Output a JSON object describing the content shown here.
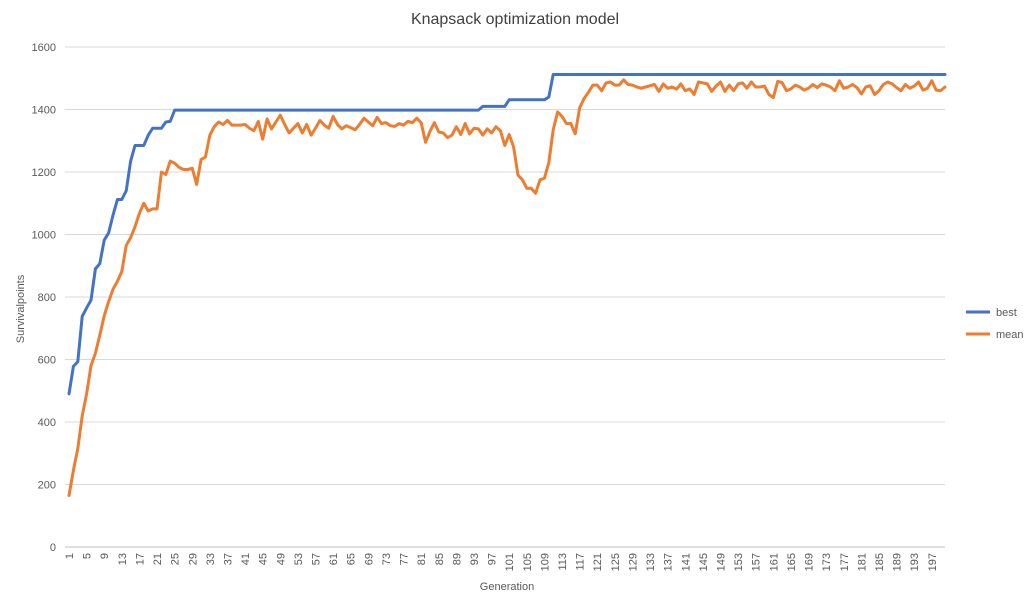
{
  "chart_data": {
    "type": "line",
    "title": "Knapsack optimization model",
    "xlabel": "Generation",
    "ylabel": "Survivalpoints",
    "ylim": [
      0,
      1600
    ],
    "yticks": [
      0,
      200,
      400,
      600,
      800,
      1000,
      1200,
      1400,
      1600
    ],
    "grid": true,
    "legend_position": "right",
    "x_start": 1,
    "x_end": 200,
    "x_tick_labels": [
      "1",
      "5",
      "9",
      "13",
      "17",
      "21",
      "25",
      "29",
      "33",
      "37",
      "41",
      "45",
      "49",
      "53",
      "57",
      "61",
      "65",
      "69",
      "73",
      "77",
      "81",
      "85",
      "89",
      "93",
      "97",
      "101",
      "105",
      "109",
      "113",
      "117",
      "121",
      "125",
      "129",
      "133",
      "137",
      "141",
      "145",
      "149",
      "153",
      "157",
      "161",
      "165",
      "169",
      "173",
      "177",
      "181",
      "185",
      "189",
      "193",
      "197"
    ],
    "series": [
      {
        "name": "best",
        "color": "#4472c4",
        "points": [
          [
            1,
            490
          ],
          [
            2,
            578
          ],
          [
            3,
            593
          ],
          [
            4,
            738
          ],
          [
            5,
            765
          ],
          [
            6,
            790
          ],
          [
            7,
            890
          ],
          [
            8,
            907
          ],
          [
            9,
            982
          ],
          [
            10,
            1005
          ],
          [
            11,
            1062
          ],
          [
            12,
            1112
          ],
          [
            13,
            1112
          ],
          [
            14,
            1140
          ],
          [
            15,
            1235
          ],
          [
            16,
            1285
          ],
          [
            17,
            1285
          ],
          [
            18,
            1285
          ],
          [
            19,
            1318
          ],
          [
            20,
            1340
          ],
          [
            21,
            1340
          ],
          [
            22,
            1340
          ],
          [
            23,
            1360
          ],
          [
            24,
            1362
          ],
          [
            25,
            1398
          ],
          [
            94,
            1398
          ],
          [
            95,
            1410
          ],
          [
            100,
            1410
          ],
          [
            101,
            1431
          ],
          [
            109,
            1431
          ],
          [
            110,
            1440
          ],
          [
            111,
            1512
          ],
          [
            200,
            1512
          ]
        ]
      },
      {
        "name": "mean",
        "color": "#ed7d31",
        "points": [
          [
            1,
            165
          ],
          [
            2,
            245
          ],
          [
            3,
            315
          ],
          [
            4,
            420
          ],
          [
            5,
            490
          ],
          [
            6,
            580
          ],
          [
            7,
            620
          ],
          [
            8,
            678
          ],
          [
            9,
            740
          ],
          [
            10,
            785
          ],
          [
            11,
            825
          ],
          [
            12,
            850
          ],
          [
            13,
            882
          ],
          [
            14,
            965
          ],
          [
            15,
            990
          ],
          [
            16,
            1025
          ],
          [
            17,
            1068
          ],
          [
            18,
            1100
          ],
          [
            19,
            1075
          ],
          [
            20,
            1082
          ],
          [
            21,
            1082
          ],
          [
            22,
            1200
          ],
          [
            23,
            1192
          ],
          [
            24,
            1235
          ],
          [
            25,
            1228
          ],
          [
            26,
            1215
          ],
          [
            27,
            1208
          ],
          [
            28,
            1208
          ],
          [
            29,
            1212
          ],
          [
            30,
            1160
          ],
          [
            31,
            1240
          ],
          [
            32,
            1248
          ],
          [
            33,
            1318
          ],
          [
            34,
            1345
          ],
          [
            35,
            1360
          ],
          [
            36,
            1352
          ],
          [
            37,
            1365
          ],
          [
            38,
            1350
          ],
          [
            39,
            1350
          ],
          [
            40,
            1350
          ],
          [
            41,
            1352
          ],
          [
            42,
            1340
          ],
          [
            43,
            1332
          ],
          [
            44,
            1362
          ],
          [
            45,
            1305
          ],
          [
            46,
            1370
          ],
          [
            47,
            1338
          ],
          [
            48,
            1360
          ],
          [
            49,
            1382
          ],
          [
            50,
            1352
          ],
          [
            51,
            1325
          ],
          [
            52,
            1340
          ],
          [
            53,
            1355
          ],
          [
            54,
            1325
          ],
          [
            55,
            1352
          ],
          [
            56,
            1318
          ],
          [
            57,
            1340
          ],
          [
            58,
            1365
          ],
          [
            59,
            1350
          ],
          [
            60,
            1340
          ],
          [
            61,
            1378
          ],
          [
            62,
            1352
          ],
          [
            63,
            1338
          ],
          [
            64,
            1348
          ],
          [
            65,
            1342
          ],
          [
            66,
            1335
          ],
          [
            67,
            1352
          ],
          [
            68,
            1372
          ],
          [
            69,
            1360
          ],
          [
            70,
            1348
          ],
          [
            71,
            1375
          ],
          [
            72,
            1355
          ],
          [
            73,
            1358
          ],
          [
            74,
            1348
          ],
          [
            75,
            1346
          ],
          [
            76,
            1355
          ],
          [
            77,
            1350
          ],
          [
            78,
            1362
          ],
          [
            79,
            1358
          ],
          [
            80,
            1372
          ],
          [
            81,
            1358
          ],
          [
            82,
            1295
          ],
          [
            83,
            1330
          ],
          [
            84,
            1358
          ],
          [
            85,
            1328
          ],
          [
            86,
            1325
          ],
          [
            87,
            1310
          ],
          [
            88,
            1318
          ],
          [
            89,
            1345
          ],
          [
            90,
            1320
          ],
          [
            91,
            1355
          ],
          [
            92,
            1322
          ],
          [
            93,
            1340
          ],
          [
            94,
            1338
          ],
          [
            95,
            1318
          ],
          [
            96,
            1338
          ],
          [
            97,
            1325
          ],
          [
            98,
            1345
          ],
          [
            99,
            1332
          ],
          [
            100,
            1285
          ],
          [
            101,
            1320
          ],
          [
            102,
            1280
          ],
          [
            103,
            1190
          ],
          [
            104,
            1175
          ],
          [
            105,
            1148
          ],
          [
            106,
            1148
          ],
          [
            107,
            1132
          ],
          [
            108,
            1175
          ],
          [
            109,
            1180
          ],
          [
            110,
            1230
          ],
          [
            111,
            1335
          ],
          [
            112,
            1392
          ],
          [
            113,
            1378
          ],
          [
            114,
            1355
          ],
          [
            115,
            1355
          ],
          [
            116,
            1322
          ],
          [
            117,
            1405
          ],
          [
            118,
            1435
          ],
          [
            119,
            1455
          ],
          [
            120,
            1478
          ],
          [
            121,
            1478
          ],
          [
            122,
            1460
          ],
          [
            123,
            1485
          ],
          [
            124,
            1488
          ],
          [
            125,
            1478
          ],
          [
            126,
            1478
          ],
          [
            127,
            1495
          ],
          [
            128,
            1480
          ],
          [
            129,
            1478
          ],
          [
            130,
            1472
          ],
          [
            131,
            1468
          ],
          [
            132,
            1472
          ],
          [
            133,
            1476
          ],
          [
            134,
            1480
          ],
          [
            135,
            1458
          ],
          [
            136,
            1482
          ],
          [
            137,
            1468
          ],
          [
            138,
            1472
          ],
          [
            139,
            1465
          ],
          [
            140,
            1482
          ],
          [
            141,
            1460
          ],
          [
            142,
            1466
          ],
          [
            143,
            1448
          ],
          [
            144,
            1488
          ],
          [
            145,
            1485
          ],
          [
            146,
            1482
          ],
          [
            147,
            1458
          ],
          [
            148,
            1475
          ],
          [
            149,
            1488
          ],
          [
            150,
            1458
          ],
          [
            151,
            1478
          ],
          [
            152,
            1460
          ],
          [
            153,
            1482
          ],
          [
            154,
            1485
          ],
          [
            155,
            1468
          ],
          [
            156,
            1488
          ],
          [
            157,
            1472
          ],
          [
            158,
            1472
          ],
          [
            159,
            1475
          ],
          [
            160,
            1448
          ],
          [
            161,
            1438
          ],
          [
            162,
            1490
          ],
          [
            163,
            1486
          ],
          [
            164,
            1460
          ],
          [
            165,
            1466
          ],
          [
            166,
            1478
          ],
          [
            167,
            1472
          ],
          [
            168,
            1462
          ],
          [
            169,
            1468
          ],
          [
            170,
            1480
          ],
          [
            171,
            1470
          ],
          [
            172,
            1482
          ],
          [
            173,
            1478
          ],
          [
            174,
            1472
          ],
          [
            175,
            1460
          ],
          [
            176,
            1492
          ],
          [
            177,
            1468
          ],
          [
            178,
            1472
          ],
          [
            179,
            1480
          ],
          [
            180,
            1470
          ],
          [
            181,
            1450
          ],
          [
            182,
            1472
          ],
          [
            183,
            1476
          ],
          [
            184,
            1448
          ],
          [
            185,
            1460
          ],
          [
            186,
            1480
          ],
          [
            187,
            1488
          ],
          [
            188,
            1482
          ],
          [
            189,
            1470
          ],
          [
            190,
            1460
          ],
          [
            191,
            1480
          ],
          [
            192,
            1468
          ],
          [
            193,
            1475
          ],
          [
            194,
            1488
          ],
          [
            195,
            1462
          ],
          [
            196,
            1468
          ],
          [
            197,
            1492
          ],
          [
            198,
            1462
          ],
          [
            199,
            1460
          ],
          [
            200,
            1472
          ]
        ]
      }
    ]
  }
}
